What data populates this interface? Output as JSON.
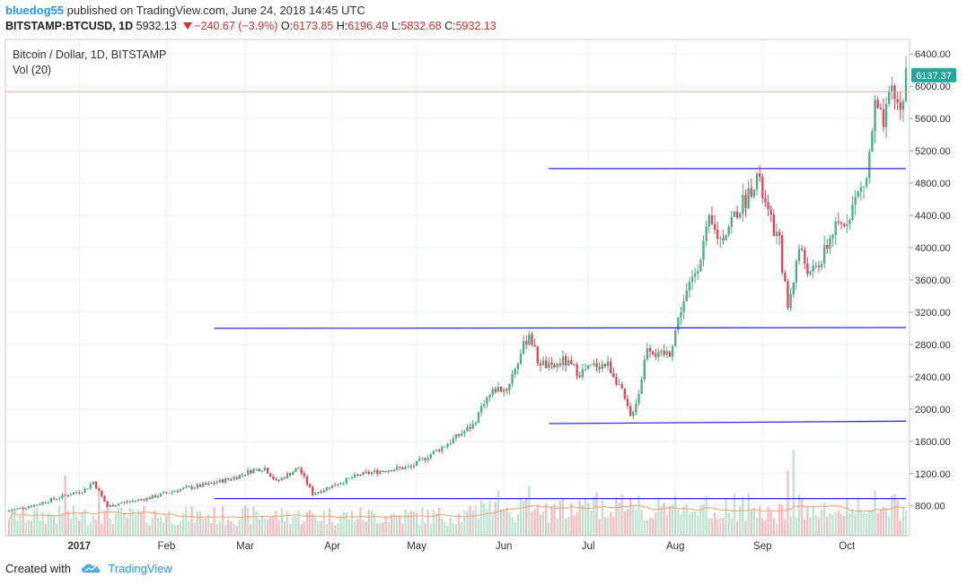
{
  "header": {
    "author": "bluedog55",
    "published_text": "published on TradingView.com, June 24, 2018 14:45 UTC",
    "symbol": "BITSTAMP:BTCUSD, 1D",
    "last": "5932.13",
    "change": "−240.67 (−3.9%)",
    "open_label": "O:",
    "open": "6173.85",
    "high_label": "H:",
    "high": "6196.49",
    "low_label": "L:",
    "low": "5832.68",
    "close_label": "C:",
    "close": "5932.13"
  },
  "legend": {
    "title": "Bitcoin / Dollar, 1D, BITSTAMP",
    "volume": "Vol (20)"
  },
  "footer": {
    "created_with": "Created with",
    "brand": "TradingView"
  },
  "colors": {
    "up": "#4caf85",
    "down": "#e0475a",
    "trendline": "#2c2cd6",
    "price_line": "#f4a6a6",
    "price_label_bg": "#26a69a",
    "grid": "#eef0f3"
  },
  "chart_data": {
    "type": "candlestick",
    "title": "Bitcoin / Dollar, 1D, BITSTAMP",
    "x_ticks": [
      "2017",
      "Feb",
      "Mar",
      "Apr",
      "May",
      "Jun",
      "Jul",
      "Aug",
      "Sep",
      "Oct"
    ],
    "y_ticks": [
      "6400.00",
      "6000.00",
      "5600.00",
      "5200.00",
      "4800.00",
      "4400.00",
      "4000.00",
      "3600.00",
      "3200.00",
      "2800.00",
      "2400.00",
      "2000.00",
      "1600.00",
      "1200.00",
      "800.00"
    ],
    "ylim": [
      430,
      6580
    ],
    "last_price_label": "6137.37",
    "last_price": 6137.37,
    "horizontal_price_line": 5932.13,
    "day_range": [
      -25,
      294
    ],
    "trend_lines": [
      {
        "x1": 48,
        "y1": 890,
        "x2": 294,
        "y2": 890
      },
      {
        "x1": 48,
        "y1": 3000,
        "x2": 294,
        "y2": 3010
      },
      {
        "x1": 167,
        "y1": 1820,
        "x2": 294,
        "y2": 1850
      },
      {
        "x1": 167,
        "y1": 4980,
        "x2": 294,
        "y2": 4980
      }
    ],
    "price_anchors": [
      {
        "day": -25,
        "price": 740
      },
      {
        "day": -15,
        "price": 820
      },
      {
        "day": -5,
        "price": 930
      },
      {
        "day": 2,
        "price": 1000
      },
      {
        "day": 5,
        "price": 1100
      },
      {
        "day": 10,
        "price": 790
      },
      {
        "day": 14,
        "price": 830
      },
      {
        "day": 25,
        "price": 900
      },
      {
        "day": 35,
        "price": 1000
      },
      {
        "day": 45,
        "price": 1060
      },
      {
        "day": 55,
        "price": 1150
      },
      {
        "day": 62,
        "price": 1250
      },
      {
        "day": 66,
        "price": 1270
      },
      {
        "day": 70,
        "price": 1100
      },
      {
        "day": 78,
        "price": 1270
      },
      {
        "day": 83,
        "price": 950
      },
      {
        "day": 90,
        "price": 1050
      },
      {
        "day": 100,
        "price": 1190
      },
      {
        "day": 110,
        "price": 1250
      },
      {
        "day": 118,
        "price": 1280
      },
      {
        "day": 124,
        "price": 1420
      },
      {
        "day": 130,
        "price": 1550
      },
      {
        "day": 136,
        "price": 1700
      },
      {
        "day": 140,
        "price": 1800
      },
      {
        "day": 144,
        "price": 2100
      },
      {
        "day": 148,
        "price": 2250
      },
      {
        "day": 152,
        "price": 2250
      },
      {
        "day": 156,
        "price": 2600
      },
      {
        "day": 160,
        "price": 2950
      },
      {
        "day": 163,
        "price": 2600
      },
      {
        "day": 168,
        "price": 2500
      },
      {
        "day": 172,
        "price": 2600
      },
      {
        "day": 178,
        "price": 2450
      },
      {
        "day": 184,
        "price": 2550
      },
      {
        "day": 188,
        "price": 2550
      },
      {
        "day": 192,
        "price": 2300
      },
      {
        "day": 196,
        "price": 1900
      },
      {
        "day": 199,
        "price": 2200
      },
      {
        "day": 202,
        "price": 2800
      },
      {
        "day": 206,
        "price": 2650
      },
      {
        "day": 210,
        "price": 2700
      },
      {
        "day": 214,
        "price": 3250
      },
      {
        "day": 220,
        "price": 3800
      },
      {
        "day": 224,
        "price": 4300
      },
      {
        "day": 228,
        "price": 4100
      },
      {
        "day": 232,
        "price": 4350
      },
      {
        "day": 237,
        "price": 4600
      },
      {
        "day": 241,
        "price": 4900
      },
      {
        "day": 245,
        "price": 4400
      },
      {
        "day": 249,
        "price": 4050
      },
      {
        "day": 252,
        "price": 3250
      },
      {
        "day": 256,
        "price": 4000
      },
      {
        "day": 260,
        "price": 3650
      },
      {
        "day": 264,
        "price": 3850
      },
      {
        "day": 268,
        "price": 4200
      },
      {
        "day": 272,
        "price": 4300
      },
      {
        "day": 276,
        "price": 4600
      },
      {
        "day": 280,
        "price": 4850
      },
      {
        "day": 283,
        "price": 5750
      },
      {
        "day": 286,
        "price": 5500
      },
      {
        "day": 289,
        "price": 5950
      },
      {
        "day": 292,
        "price": 5700
      },
      {
        "day": 294,
        "price": 6137
      }
    ],
    "volume_spikes": [
      {
        "day": -5,
        "value": 12
      },
      {
        "day": 7,
        "value": 10
      },
      {
        "day": 149,
        "value": 9
      },
      {
        "day": 160,
        "value": 10
      },
      {
        "day": 199,
        "value": 8
      },
      {
        "day": 252,
        "value": 13
      },
      {
        "day": 254,
        "value": 17
      },
      {
        "day": 283,
        "value": 9
      }
    ]
  }
}
